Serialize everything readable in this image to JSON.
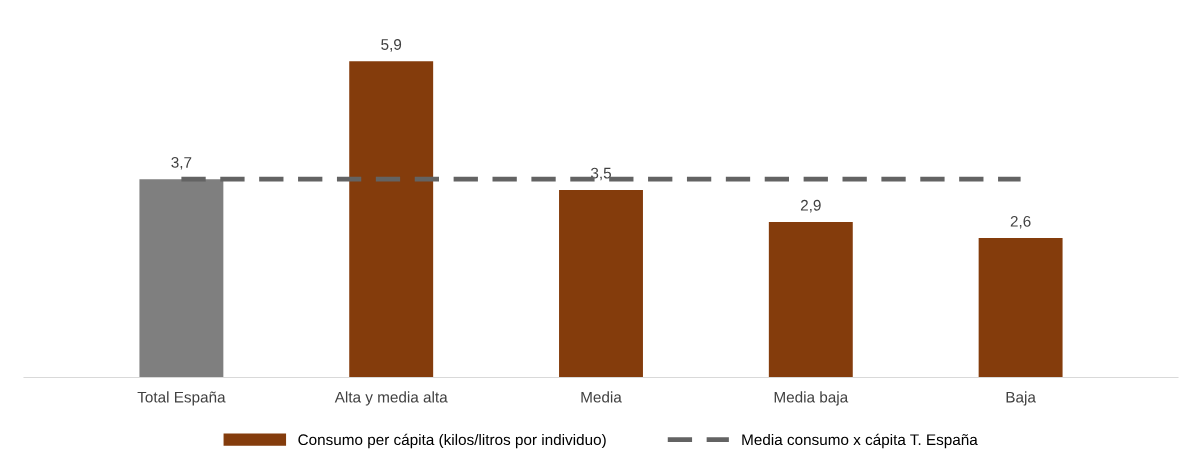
{
  "chart_data": {
    "type": "bar",
    "categories": [
      "Total España",
      "Alta y media alta",
      "Media",
      "Media baja",
      "Baja"
    ],
    "series": [
      {
        "name": "Consumo per cápita (kilos/litros por individuo)",
        "color": "#843c0c",
        "colors": [
          "#7f7f7f",
          "#843c0c",
          "#843c0c",
          "#843c0c",
          "#843c0c"
        ],
        "values": [
          3.7,
          5.9,
          3.5,
          2.9,
          2.6
        ],
        "value_labels": [
          "3,7",
          "5,9",
          "3,5",
          "2,9",
          "2,6"
        ]
      },
      {
        "name": "Media consumo x cápita T. España",
        "type": "line",
        "color": "#636363",
        "line_style": "dashed",
        "values": [
          3.7,
          3.7,
          3.7,
          3.7,
          3.7
        ]
      }
    ],
    "legend": "bottom",
    "grid": false,
    "tick_labels": "x"
  }
}
